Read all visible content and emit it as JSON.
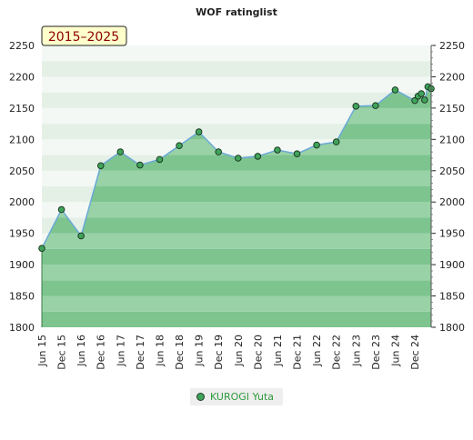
{
  "chart_data": {
    "type": "line",
    "title": "WOF ratinglist",
    "badge": "2015–2025",
    "ylim": [
      1800,
      2250
    ],
    "yticks": [
      1800,
      1850,
      1900,
      1950,
      2000,
      2050,
      2100,
      2150,
      2200,
      2250
    ],
    "xticks": [
      "Jun 15",
      "Dec 15",
      "Jun 16",
      "Dec 16",
      "Jun 17",
      "Dec 17",
      "Jun 18",
      "Dec 18",
      "Jun 19",
      "Dec 19",
      "Jun 20",
      "Dec 20",
      "Jun 21",
      "Dec 21",
      "Jun 22",
      "Dec 22",
      "Jun 23",
      "Dec 23",
      "Jun 24",
      "Dec 24"
    ],
    "grid": true,
    "legend_position": "bottom-center",
    "colors": {
      "line": "#6aa9d8",
      "marker": "#3fa45a",
      "fill": "#7dc48f",
      "legend_text": "#2e9a3e"
    },
    "series": [
      {
        "name": "KUROGI Yuta",
        "points": [
          {
            "x": "2015-06",
            "y": 1926
          },
          {
            "x": "2015-12",
            "y": 1988
          },
          {
            "x": "2016-06",
            "y": 1946
          },
          {
            "x": "2016-12",
            "y": 2058
          },
          {
            "x": "2017-06",
            "y": 2080
          },
          {
            "x": "2017-12",
            "y": 2059
          },
          {
            "x": "2018-06",
            "y": 2068
          },
          {
            "x": "2018-12",
            "y": 2090
          },
          {
            "x": "2019-06",
            "y": 2112
          },
          {
            "x": "2019-12",
            "y": 2080
          },
          {
            "x": "2020-06",
            "y": 2070
          },
          {
            "x": "2020-12",
            "y": 2073
          },
          {
            "x": "2021-06",
            "y": 2083
          },
          {
            "x": "2021-12",
            "y": 2077
          },
          {
            "x": "2022-06",
            "y": 2091
          },
          {
            "x": "2022-12",
            "y": 2096
          },
          {
            "x": "2023-06",
            "y": 2153
          },
          {
            "x": "2023-12",
            "y": 2154
          },
          {
            "x": "2024-06",
            "y": 2179
          },
          {
            "x": "2024-12",
            "y": 2162
          },
          {
            "x": "2025-01",
            "y": 2169
          },
          {
            "x": "2025-02",
            "y": 2173
          },
          {
            "x": "2025-03",
            "y": 2163
          },
          {
            "x": "2025-04",
            "y": 2184
          },
          {
            "x": "2025-05",
            "y": 2181
          }
        ]
      }
    ]
  }
}
